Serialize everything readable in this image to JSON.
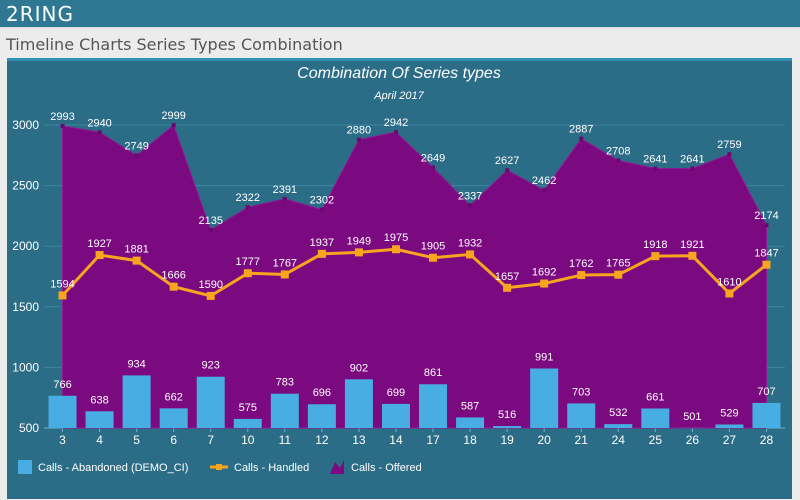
{
  "app": {
    "logo": "2RING",
    "page_title": "Timeline Charts Series Types Combination"
  },
  "colors": {
    "panel": "#2b6d87",
    "abandoned": "#47ade3",
    "handled": "#f7a51e",
    "offered": "#7b0a80",
    "text": "#ffffff"
  },
  "chart_data": {
    "type": "bar",
    "title": "Combination Of Series types",
    "subtitle": "April 2017",
    "categories": [
      "3",
      "4",
      "5",
      "6",
      "7",
      "10",
      "11",
      "12",
      "13",
      "14",
      "17",
      "18",
      "19",
      "20",
      "21",
      "24",
      "25",
      "26",
      "27",
      "28"
    ],
    "ylim": [
      500,
      3000
    ],
    "yticks": [
      500,
      1000,
      1500,
      2000,
      2500,
      3000
    ],
    "grid": true,
    "legend_position": "bottom-left",
    "series": [
      {
        "name": "Calls - Abandoned (DEMO_CI)",
        "kind": "bar",
        "values": [
          766,
          638,
          934,
          662,
          923,
          575,
          783,
          696,
          902,
          699,
          861,
          587,
          516,
          991,
          703,
          532,
          661,
          501,
          529,
          707
        ]
      },
      {
        "name": "Calls - Handled",
        "kind": "line",
        "values": [
          1594,
          1927,
          1881,
          1666,
          1590,
          1777,
          1767,
          1937,
          1949,
          1975,
          1905,
          1932,
          1657,
          1692,
          1762,
          1765,
          1918,
          1921,
          1610,
          1847
        ]
      },
      {
        "name": "Calls - Offered",
        "kind": "area",
        "values": [
          2993,
          2940,
          2749,
          2999,
          2135,
          2322,
          2391,
          2302,
          2880,
          2942,
          2649,
          2337,
          2627,
          2462,
          2887,
          2708,
          2641,
          2641,
          2759,
          2174
        ]
      }
    ]
  }
}
